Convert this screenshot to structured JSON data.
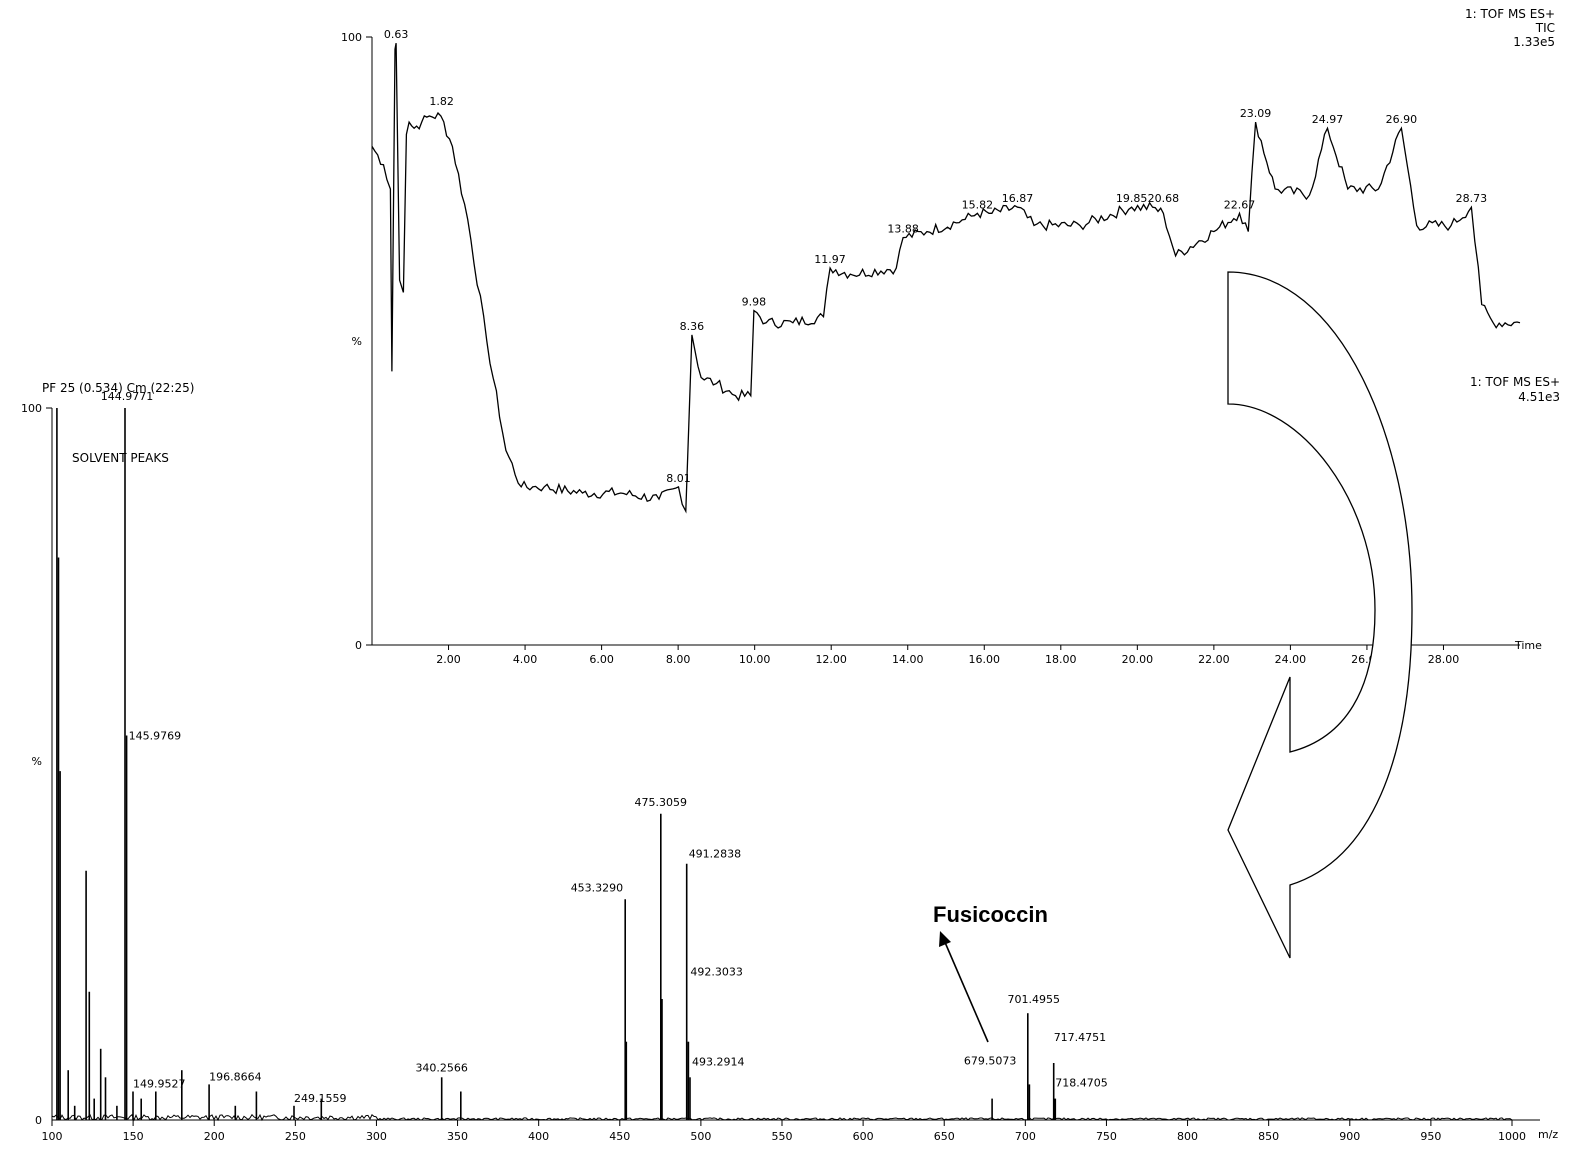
{
  "chart_data": [
    {
      "type": "line",
      "header": [
        "1: TOF MS ES+",
        "TIC",
        "1.33e5"
      ],
      "xlabel": "Time",
      "y_top_label": "100",
      "y_bottom_label": "0",
      "y_mid_label": "%",
      "xlim": [
        0,
        30
      ],
      "ylim": [
        0,
        100
      ],
      "x_ticks": [
        "2.00",
        "4.00",
        "6.00",
        "8.00",
        "10.00",
        "12.00",
        "14.00",
        "16.00",
        "18.00",
        "20.00",
        "22.00",
        "24.00",
        "26.00",
        "28.00"
      ],
      "x": [
        0.0,
        0.3,
        0.48,
        0.52,
        0.6,
        0.63,
        0.72,
        0.82,
        0.9,
        0.97,
        1.1,
        1.3,
        1.5,
        1.8,
        2.1,
        2.5,
        3.0,
        3.5,
        3.9,
        4.2,
        4.5,
        5.5,
        6.5,
        7.5,
        8.01,
        8.2,
        8.36,
        8.6,
        9.0,
        9.5,
        9.9,
        9.98,
        10.3,
        11.0,
        11.8,
        11.97,
        12.5,
        13.7,
        13.88,
        14.5,
        15.5,
        15.82,
        16.2,
        16.87,
        17.3,
        18.5,
        19.85,
        20.4,
        20.68,
        21.0,
        22.0,
        22.67,
        22.9,
        23.09,
        23.6,
        24.5,
        24.97,
        25.5,
        26.3,
        26.9,
        27.3,
        28.2,
        28.73,
        29.0,
        29.3,
        30.0
      ],
      "y": [
        82,
        79,
        75,
        45,
        98,
        99,
        60,
        58,
        84,
        86,
        85,
        86,
        87,
        87,
        82,
        70,
        50,
        32,
        26,
        26,
        26,
        25,
        25,
        24,
        26,
        22,
        51,
        44,
        43,
        41,
        41,
        55,
        53,
        53,
        54,
        62,
        61,
        62,
        67,
        68,
        70,
        71,
        71,
        72,
        69,
        69,
        72,
        72,
        71,
        64,
        68,
        71,
        68,
        86,
        75,
        74,
        85,
        75,
        75,
        85,
        69,
        69,
        72,
        56,
        53,
        53
      ],
      "peak_labels": [
        {
          "x": 0.63,
          "y": 99,
          "label": "0.63"
        },
        {
          "x": 1.82,
          "y": 88,
          "label": "1.82"
        },
        {
          "x": 8.01,
          "y": 26,
          "label": "8.01"
        },
        {
          "x": 8.36,
          "y": 51,
          "label": "8.36"
        },
        {
          "x": 9.98,
          "y": 55,
          "label": "9.98"
        },
        {
          "x": 11.97,
          "y": 62,
          "label": "11.97"
        },
        {
          "x": 13.88,
          "y": 67,
          "label": "13.88"
        },
        {
          "x": 15.82,
          "y": 71,
          "label": "15.82"
        },
        {
          "x": 16.87,
          "y": 72,
          "label": "16.87"
        },
        {
          "x": 19.85,
          "y": 72,
          "label": "19.85"
        },
        {
          "x": 20.68,
          "y": 72,
          "label": "20.68"
        },
        {
          "x": 22.67,
          "y": 71,
          "label": "22.67"
        },
        {
          "x": 23.09,
          "y": 86,
          "label": "23.09"
        },
        {
          "x": 24.97,
          "y": 85,
          "label": "24.97"
        },
        {
          "x": 26.9,
          "y": 85,
          "label": "26.90"
        },
        {
          "x": 28.73,
          "y": 72,
          "label": "28.73"
        }
      ]
    },
    {
      "type": "bar",
      "title": "PF 25 (0.534) Cm (22:25)",
      "header": [
        "1: TOF MS ES+",
        "4.51e3"
      ],
      "xlabel": "m/z",
      "y_top_label": "100",
      "y_bottom_label": "0",
      "y_mid_label": "%",
      "annotation": "SOLVENT PEAKS",
      "compound_label": "Fusicoccin",
      "xlim": [
        100,
        1000
      ],
      "ylim": [
        0,
        100
      ],
      "x_ticks": [
        "100",
        "150",
        "200",
        "250",
        "300",
        "350",
        "400",
        "450",
        "500",
        "550",
        "600",
        "650",
        "700",
        "750",
        "800",
        "850",
        "900",
        "950",
        "1000"
      ],
      "peaks": [
        {
          "mz": 103,
          "intensity": 100
        },
        {
          "mz": 104,
          "intensity": 79
        },
        {
          "mz": 105,
          "intensity": 49
        },
        {
          "mz": 110,
          "intensity": 7
        },
        {
          "mz": 114,
          "intensity": 2
        },
        {
          "mz": 121,
          "intensity": 35
        },
        {
          "mz": 123,
          "intensity": 18
        },
        {
          "mz": 126,
          "intensity": 3
        },
        {
          "mz": 130,
          "intensity": 10
        },
        {
          "mz": 133,
          "intensity": 6
        },
        {
          "mz": 140,
          "intensity": 2
        },
        {
          "mz": 144.9771,
          "intensity": 100,
          "label": "144.9771"
        },
        {
          "mz": 145.9769,
          "intensity": 54,
          "label": "145.9769"
        },
        {
          "mz": 149.9527,
          "intensity": 4,
          "label": "149.9527"
        },
        {
          "mz": 155,
          "intensity": 3
        },
        {
          "mz": 164,
          "intensity": 4
        },
        {
          "mz": 180,
          "intensity": 7
        },
        {
          "mz": 196.8664,
          "intensity": 5,
          "label": "196.8664"
        },
        {
          "mz": 213,
          "intensity": 2
        },
        {
          "mz": 226,
          "intensity": 4
        },
        {
          "mz": 249.1559,
          "intensity": 2,
          "label": "249.1559"
        },
        {
          "mz": 266,
          "intensity": 3
        },
        {
          "mz": 340.2566,
          "intensity": 6,
          "label": "340.2566"
        },
        {
          "mz": 352,
          "intensity": 4
        },
        {
          "mz": 453.329,
          "intensity": 31,
          "label": "453.3290"
        },
        {
          "mz": 454,
          "intensity": 11
        },
        {
          "mz": 475.3059,
          "intensity": 43,
          "label": "475.3059"
        },
        {
          "mz": 476,
          "intensity": 17
        },
        {
          "mz": 491.2838,
          "intensity": 36,
          "label": "491.2838"
        },
        {
          "mz": 492.3033,
          "intensity": 11,
          "label": "492.3033"
        },
        {
          "mz": 493.2914,
          "intensity": 6,
          "label": "493.2914"
        },
        {
          "mz": 679.5073,
          "intensity": 3,
          "label": "679.5073"
        },
        {
          "mz": 701.4955,
          "intensity": 15,
          "label": "701.4955"
        },
        {
          "mz": 702.5,
          "intensity": 5
        },
        {
          "mz": 717.4751,
          "intensity": 8,
          "label": "717.4751"
        },
        {
          "mz": 718.4705,
          "intensity": 3,
          "label": "718.4705"
        }
      ]
    }
  ]
}
